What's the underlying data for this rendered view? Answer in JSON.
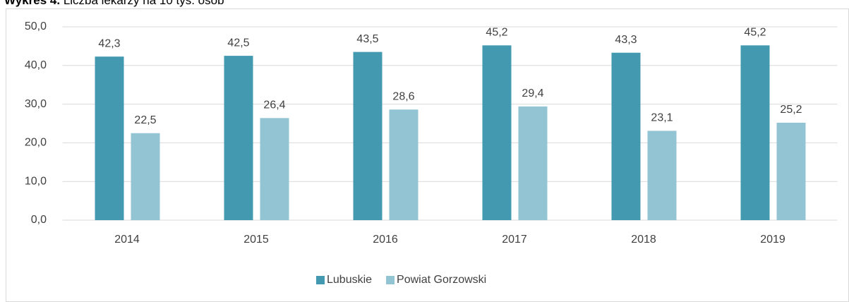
{
  "chart_data": {
    "type": "bar",
    "title_label": "Wykres 4.",
    "title": "Liczba lekarzy na 10 tys. osób",
    "categories": [
      "2014",
      "2015",
      "2016",
      "2017",
      "2018",
      "2019"
    ],
    "series": [
      {
        "name": "Lubuskie",
        "color": "#4399b0",
        "values": [
          42.3,
          42.5,
          43.5,
          45.2,
          43.3,
          45.2
        ],
        "value_labels": [
          "42,3",
          "42,5",
          "43,5",
          "45,2",
          "43,3",
          "45,2"
        ]
      },
      {
        "name": "Powiat Gorzowski",
        "color": "#93c4d4",
        "values": [
          22.5,
          26.4,
          28.6,
          29.4,
          23.1,
          25.2
        ],
        "value_labels": [
          "22,5",
          "26,4",
          "28,6",
          "29,4",
          "23,1",
          "25,2"
        ]
      }
    ],
    "ylim": [
      0,
      50
    ],
    "yticks": [
      {
        "value": 0,
        "label": "0,0"
      },
      {
        "value": 10,
        "label": "10,0"
      },
      {
        "value": 20,
        "label": "20,0"
      },
      {
        "value": 30,
        "label": "30,0"
      },
      {
        "value": 40,
        "label": "40,0"
      },
      {
        "value": 50,
        "label": "50,0"
      }
    ],
    "grid": true,
    "legend": "bottom"
  }
}
